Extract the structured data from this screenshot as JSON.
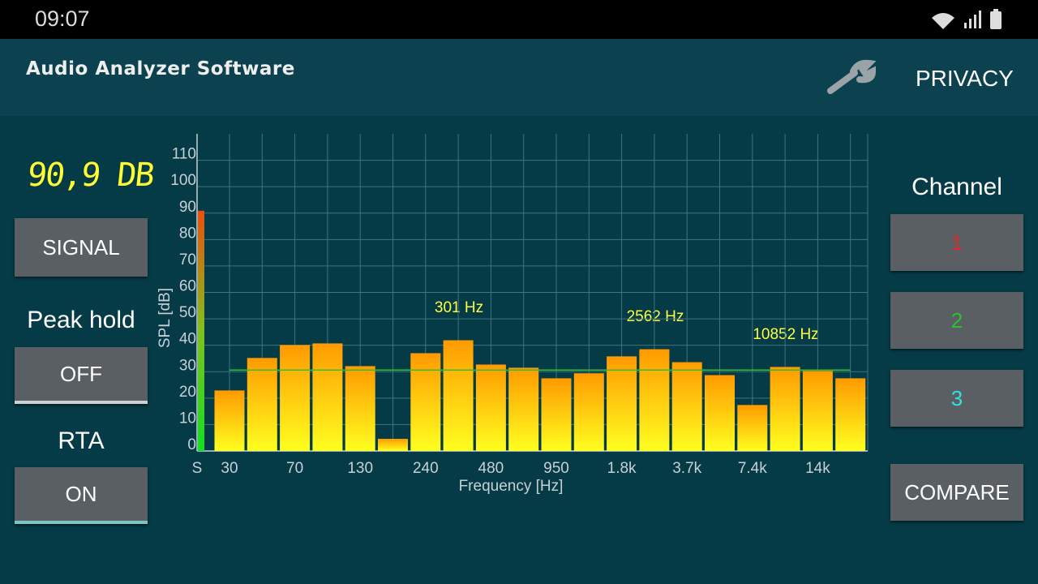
{
  "status": {
    "time": "09:07"
  },
  "header": {
    "title": "Audio Analyzer Software",
    "privacy": "PRIVACY"
  },
  "left_panel": {
    "level": "90,9 DB",
    "signal_button": "SIGNAL",
    "peak_hold_label": "Peak hold",
    "peak_hold_button": "OFF",
    "rta_label": "RTA",
    "rta_button": "ON"
  },
  "right_panel": {
    "channel_label": "Channel",
    "channels": [
      "1",
      "2",
      "3"
    ],
    "compare_button": "COMPARE"
  },
  "chart_data": {
    "type": "bar",
    "xlabel": "Frequency [Hz]",
    "ylabel": "SPL [dB]",
    "categories": [
      "30",
      null,
      "70",
      null,
      "130",
      null,
      "240",
      null,
      "480",
      null,
      "950",
      null,
      "1.8k",
      null,
      "3.7k",
      null,
      "7.4k",
      null,
      "14k",
      null
    ],
    "values": [
      22.9,
      35.2,
      40.1,
      40.7,
      32.1,
      4.6,
      37.0,
      41.9,
      32.7,
      31.5,
      27.5,
      29.4,
      35.8,
      38.5,
      33.6,
      28.7,
      17.4,
      31.8,
      30.3,
      27.5
    ],
    "ylim": [
      0,
      120
    ],
    "yticks": [
      0,
      10,
      20,
      30,
      40,
      50,
      60,
      70,
      80,
      90,
      100,
      110
    ],
    "grid": true,
    "signal": {
      "label": "S",
      "value": 90.9
    },
    "reference_line": 30.6,
    "annotations": [
      "301 Hz",
      "2562 Hz",
      "10852 Hz"
    ]
  }
}
